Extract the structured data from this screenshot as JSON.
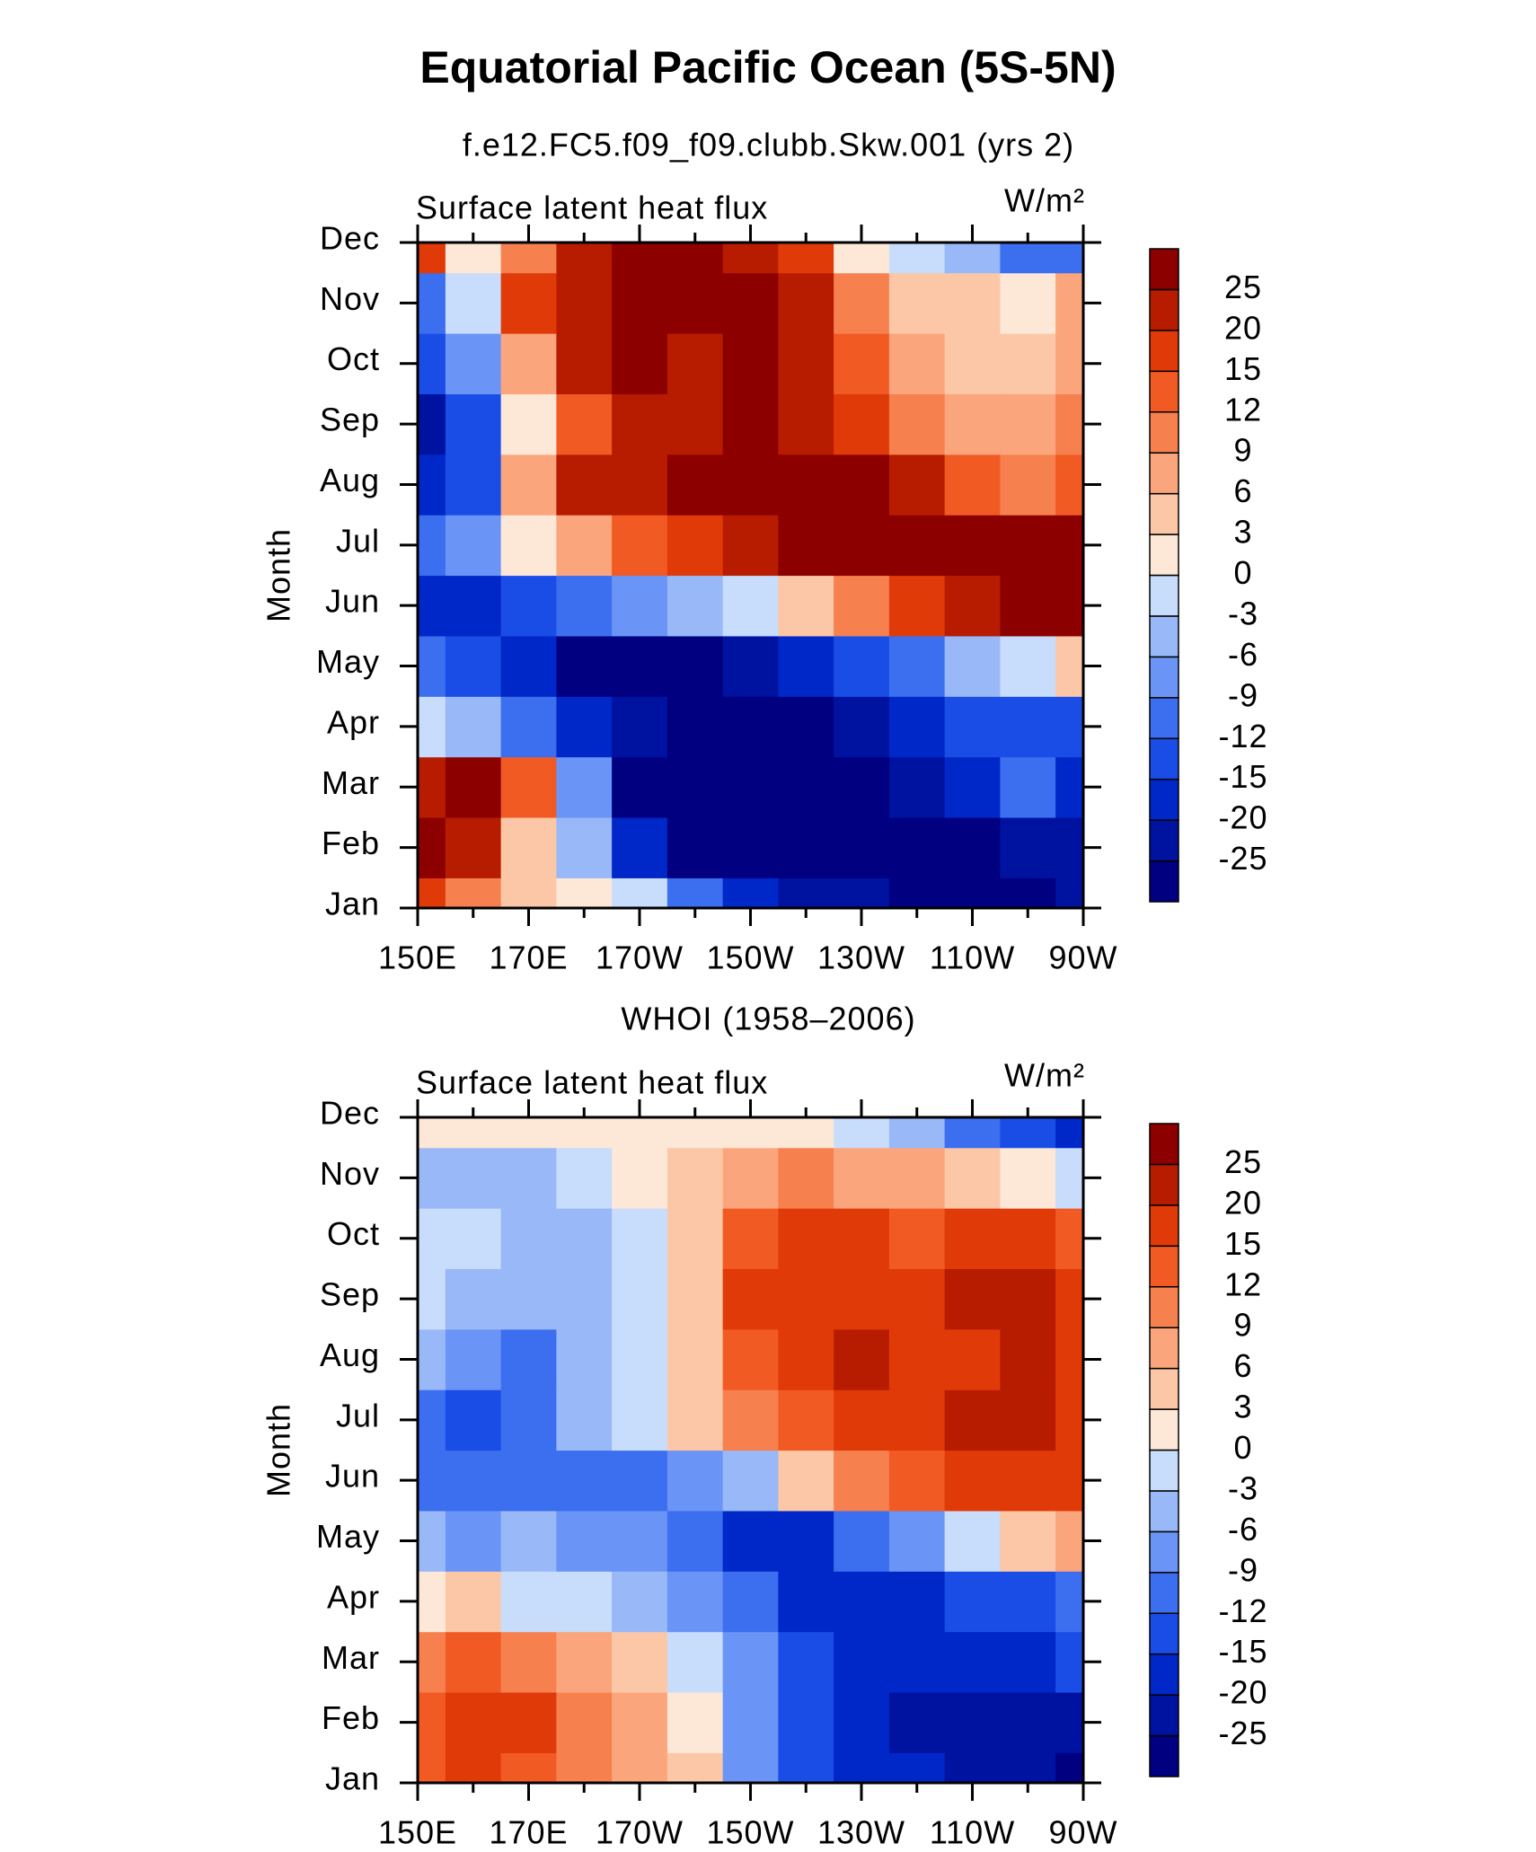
{
  "title": "Equatorial Pacific Ocean (5S-5N)",
  "chart_data": [
    {
      "type": "heatmap",
      "subtitle": "f.e12.FC5.f09_f09.clubb.Skw.001 (yrs 2)",
      "left_label": "Surface latent heat flux",
      "right_label": "W/m²",
      "ylabel": "Month",
      "x": [
        150,
        160,
        170,
        180,
        190,
        200,
        210,
        220,
        230,
        240,
        250,
        260,
        270
      ],
      "categories": [
        "Jan",
        "Feb",
        "Mar",
        "Apr",
        "May",
        "Jun",
        "Jul",
        "Aug",
        "Sep",
        "Oct",
        "Nov",
        "Dec"
      ],
      "xlim": [
        150,
        270
      ],
      "xticks": [
        {
          "value": 150,
          "label": "150E"
        },
        {
          "value": 170,
          "label": "170E"
        },
        {
          "value": 190,
          "label": "170W"
        },
        {
          "value": 210,
          "label": "150W"
        },
        {
          "value": 230,
          "label": "130W"
        },
        {
          "value": 250,
          "label": "110W"
        },
        {
          "value": 270,
          "label": "90W"
        }
      ],
      "values": [
        [
          15,
          9,
          3,
          0,
          -3,
          -12,
          -20,
          -25,
          -25,
          -26,
          -27,
          -27,
          -25
        ],
        [
          27,
          22,
          3,
          -6,
          -20,
          -26,
          -28,
          -28,
          -28,
          -28,
          -26,
          -25,
          -25
        ],
        [
          22,
          26,
          12,
          -9,
          -26,
          -28,
          -28,
          -28,
          -27,
          -25,
          -20,
          -12,
          -20
        ],
        [
          -3,
          -6,
          -12,
          -20,
          -25,
          -28,
          -28,
          -26,
          -22,
          -16,
          -15,
          -13,
          -15
        ],
        [
          -12,
          -15,
          -20,
          -26,
          -27,
          -26,
          -22,
          -20,
          -15,
          -10,
          -6,
          -3,
          3
        ],
        [
          -18,
          -20,
          -15,
          -12,
          -9,
          -6,
          -3,
          3,
          9,
          15,
          22,
          26,
          27
        ],
        [
          -12,
          -9,
          2,
          6,
          12,
          15,
          22,
          26,
          27,
          27,
          27,
          26,
          25
        ],
        [
          -20,
          -15,
          6,
          20,
          22,
          26,
          27,
          27,
          26,
          22,
          12,
          9,
          12
        ],
        [
          -22,
          -15,
          2,
          12,
          20,
          22,
          27,
          22,
          15,
          9,
          6,
          6,
          9
        ],
        [
          -15,
          -9,
          6,
          20,
          27,
          22,
          25,
          20,
          12,
          6,
          3,
          3,
          6
        ],
        [
          -12,
          -3,
          15,
          20,
          25,
          25,
          26,
          20,
          9,
          5,
          3,
          1,
          6
        ],
        [
          15,
          0,
          9,
          22,
          27,
          27,
          22,
          15,
          0,
          -3,
          -6,
          -12,
          -12
        ]
      ],
      "levels": [
        -25,
        -20,
        -15,
        -12,
        -9,
        -6,
        -3,
        0,
        3,
        6,
        9,
        12,
        15,
        20,
        25
      ],
      "colors": [
        "#000080",
        "#0012a0",
        "#0028c8",
        "#1a4de6",
        "#3c6ef0",
        "#6a94f5",
        "#98b8f8",
        "#c8dcfb",
        "#fde8d8",
        "#fcc7a6",
        "#fba57c",
        "#f7804f",
        "#f25a24",
        "#e03a08",
        "#b81c00",
        "#8c0000"
      ]
    },
    {
      "type": "heatmap",
      "subtitle": "WHOI (1958–2006)",
      "left_label": "Surface latent heat flux",
      "right_label": "W/m²",
      "ylabel": "Month",
      "x": [
        150,
        160,
        170,
        180,
        190,
        200,
        210,
        220,
        230,
        240,
        250,
        260,
        270
      ],
      "categories": [
        "Jan",
        "Feb",
        "Mar",
        "Apr",
        "May",
        "Jun",
        "Jul",
        "Aug",
        "Sep",
        "Oct",
        "Nov",
        "Dec"
      ],
      "xlim": [
        150,
        270
      ],
      "xticks": [
        {
          "value": 150,
          "label": "150E"
        },
        {
          "value": 170,
          "label": "170E"
        },
        {
          "value": 190,
          "label": "170W"
        },
        {
          "value": 210,
          "label": "150W"
        },
        {
          "value": 230,
          "label": "130W"
        },
        {
          "value": 250,
          "label": "110W"
        },
        {
          "value": 270,
          "label": "90W"
        }
      ],
      "values": [
        [
          12,
          15,
          12,
          9,
          6,
          3,
          -9,
          -15,
          -20,
          -20,
          -22,
          -25,
          -26
        ],
        [
          14,
          16,
          15,
          9,
          6,
          0,
          -9,
          -15,
          -20,
          -22,
          -25,
          -25,
          -22
        ],
        [
          9,
          12,
          9,
          6,
          3,
          -3,
          -9,
          -15,
          -18,
          -20,
          -20,
          -18,
          -15
        ],
        [
          0,
          3,
          -3,
          -3,
          -6,
          -9,
          -12,
          -16,
          -18,
          -18,
          -15,
          -14,
          -12
        ],
        [
          -6,
          -9,
          -6,
          -9,
          -9,
          -12,
          -16,
          -16,
          -12,
          -9,
          -3,
          3,
          6
        ],
        [
          -12,
          -12,
          -10,
          -12,
          -10,
          -9,
          -6,
          3,
          9,
          12,
          15,
          15,
          15
        ],
        [
          -10,
          -15,
          -12,
          -6,
          -3,
          3,
          9,
          12,
          15,
          15,
          20,
          20,
          15
        ],
        [
          -6,
          -9,
          -10,
          -6,
          -3,
          3,
          12,
          18,
          20,
          15,
          18,
          20,
          15
        ],
        [
          -3,
          -5,
          -6,
          -5,
          -3,
          3,
          15,
          15,
          18,
          15,
          20,
          22,
          15
        ],
        [
          -3,
          -3,
          -6,
          -5,
          -3,
          3,
          12,
          15,
          15,
          12,
          15,
          15,
          12
        ],
        [
          -6,
          -6,
          -4,
          -3,
          0,
          3,
          6,
          9,
          6,
          6,
          3,
          0,
          -3
        ],
        [
          2,
          1,
          0,
          0,
          1,
          2,
          0,
          0,
          -3,
          -6,
          -12,
          -15,
          -20
        ]
      ],
      "levels": [
        -25,
        -20,
        -15,
        -12,
        -9,
        -6,
        -3,
        0,
        3,
        6,
        9,
        12,
        15,
        20,
        25
      ],
      "colors": [
        "#000080",
        "#0012a0",
        "#0028c8",
        "#1a4de6",
        "#3c6ef0",
        "#6a94f5",
        "#98b8f8",
        "#c8dcfb",
        "#fde8d8",
        "#fcc7a6",
        "#fba57c",
        "#f7804f",
        "#f25a24",
        "#e03a08",
        "#b81c00",
        "#8c0000"
      ]
    }
  ]
}
